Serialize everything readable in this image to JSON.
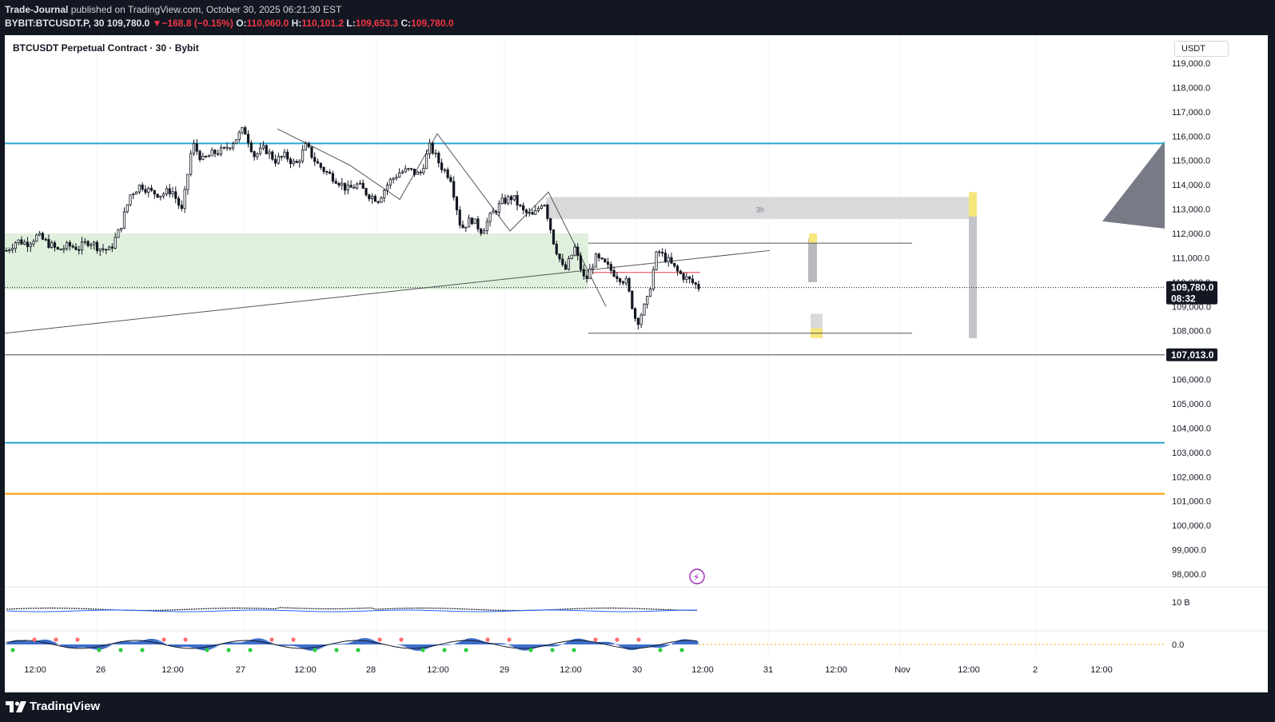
{
  "header": {
    "author": "Trade-Journal",
    "published": "published on TradingView.com, October 30, 2025 06:21:30 EST",
    "symbol": "BYBIT:BTCUSDT.P, 30",
    "last": "109,780.0",
    "change": "−168.8 (−0.15%)",
    "o_label": "O:",
    "o_value": "110,060.0",
    "h_label": "H:",
    "h_value": "110,101.2",
    "l_label": "L:",
    "l_value": "109,653.3",
    "c_label": "C:",
    "c_value": "109,780.0"
  },
  "chart_title": "BTCUSDT Perpetual Contract · 30 · Bybit",
  "currency": "USDT",
  "brand": "TradingView",
  "colors": {
    "up": "#089981",
    "down": "#f23645",
    "candle": "#131722",
    "cyan": "#26a6d1",
    "orange": "#ff9800",
    "zone_green": "#dff0dc",
    "zone_grey": "#d9d9db",
    "highlight_yellow": "#f7e67a"
  },
  "chart_data": {
    "type": "candlestick",
    "ylim": [
      97000,
      119400
    ],
    "y_ticks": [
      "119,000.0",
      "118,000.0",
      "117,000.0",
      "116,000.0",
      "115,000.0",
      "114,000.0",
      "113,000.0",
      "112,000.0",
      "111,000.0",
      "110,000.0",
      "109,000.0",
      "108,000.0",
      "106,000.0",
      "105,000.0",
      "104,000.0",
      "103,000.0",
      "102,000.0",
      "101,000.0",
      "100,000.0",
      "99,000.0",
      "98,000.0"
    ],
    "y_tick_values": [
      119000,
      118000,
      117000,
      116000,
      115000,
      114000,
      113000,
      112000,
      111000,
      110000,
      109000,
      108000,
      106000,
      105000,
      104000,
      103000,
      102000,
      101000,
      100000,
      99000,
      98000
    ],
    "x_ticks": [
      "12:00",
      "26",
      "12:00",
      "27",
      "12:00",
      "28",
      "12:00",
      "29",
      "12:00",
      "30",
      "12:00",
      "31",
      "12:00",
      "Nov",
      "12:00",
      "2",
      "12:00"
    ],
    "last_price_label": "109,780.0",
    "countdown": "08:32",
    "last_price": 109780,
    "level_label": "107,013.0",
    "level_price": 107013,
    "horizontal_lines": [
      {
        "price": 115700,
        "color": "cyan"
      },
      {
        "price": 103400,
        "color": "cyan"
      },
      {
        "price": 101300,
        "color": "orange"
      }
    ],
    "zone_label": "3h",
    "path": [
      111300,
      111700,
      111600,
      111900,
      111600,
      111300,
      111500,
      111400,
      111700,
      111400,
      111300,
      112200,
      113600,
      114000,
      113700,
      113600,
      113800,
      112900,
      115700,
      115000,
      115300,
      115400,
      115800,
      116300,
      115200,
      115500,
      115000,
      115200,
      114800,
      115600,
      114900,
      114500,
      114200,
      113800,
      114000,
      113600,
      113400,
      114100,
      114500,
      114600,
      114400,
      115600,
      114800,
      114300,
      112200,
      112600,
      112100,
      112800,
      113300,
      113500,
      112900,
      112700,
      113400,
      111600,
      110400,
      111400,
      110000,
      111000,
      110700,
      110300,
      110000,
      108300,
      109200,
      111300,
      110900,
      110400,
      110100,
      109800
    ],
    "volume_label": "10 B",
    "oscillator_label": "0.0"
  }
}
